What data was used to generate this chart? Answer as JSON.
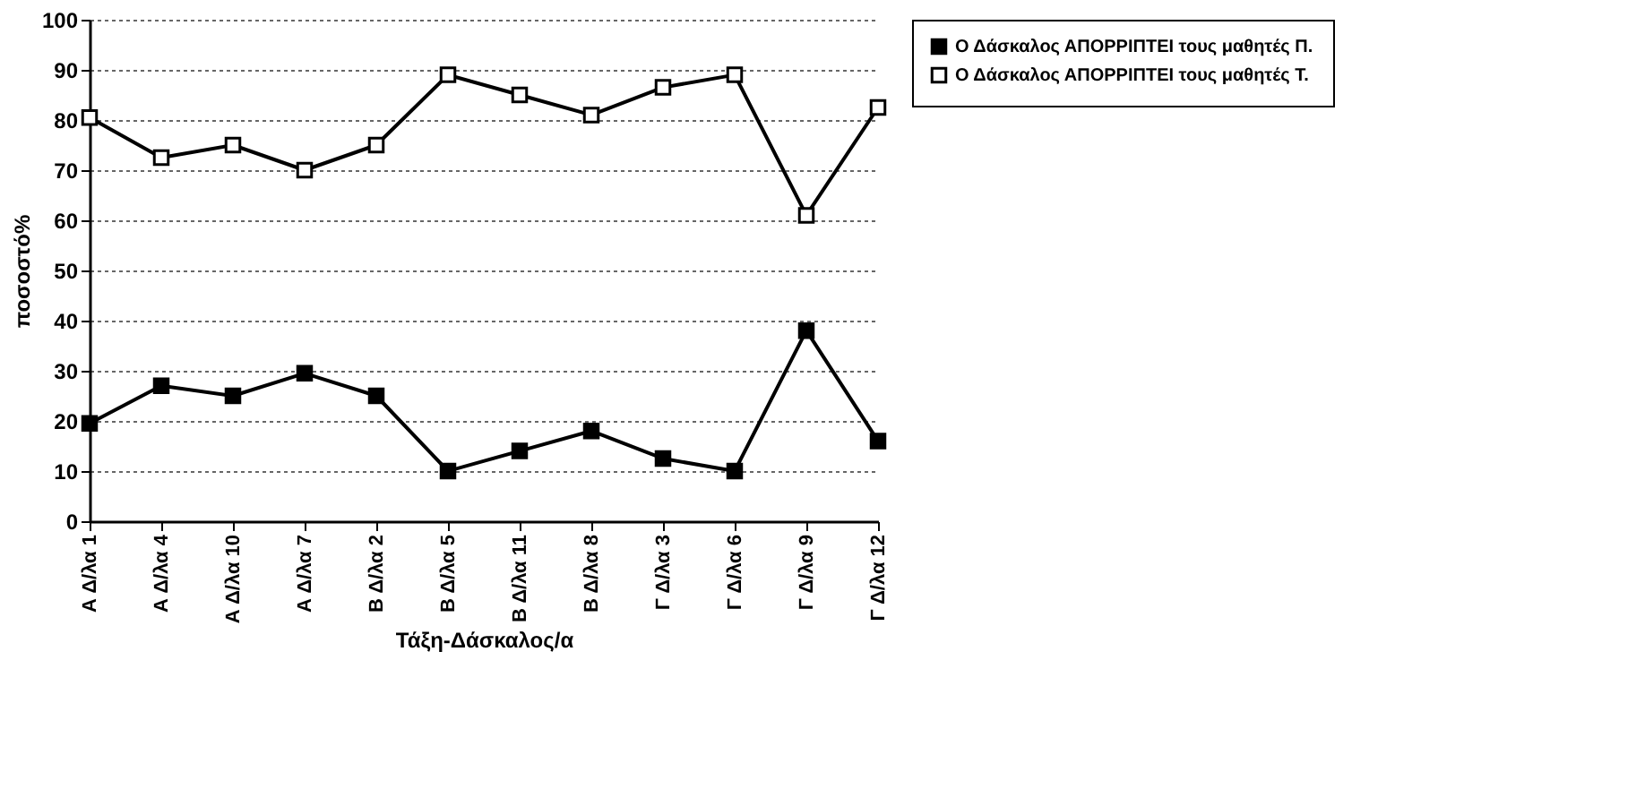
{
  "chart_data": {
    "type": "line",
    "xlabel": "Τάξη-Δάσκαλος/α",
    "ylabel": "ποσοστό%",
    "categories": [
      "Α Δ/λα 1",
      "Α Δ/λα 4",
      "Α Δ/λα 10",
      "Α Δ/λα 7",
      "Β Δ/λα 2",
      "Β Δ/λα 5",
      "Β Δ/λα 11",
      "Β Δ/λα 8",
      "Γ Δ/λα 3",
      "Γ Δ/λα 6",
      "Γ Δ/λα 9",
      "Γ Δ/λα 12"
    ],
    "series": [
      {
        "name": "Ο Δάσκαλος ΑΠΟΡΡΙΠΤΕΙ τους μαθητές Π.",
        "color": "#000000",
        "values": [
          19.5,
          27,
          25,
          29.5,
          25,
          10,
          14,
          18,
          12.5,
          10,
          38,
          16
        ]
      },
      {
        "name": "Ο Δάσκαλος ΑΠΟΡΡΙΠΤΕΙ τους μαθητές Τ.",
        "color": "#000000",
        "values": [
          80.5,
          72.5,
          75,
          70,
          75,
          89,
          85,
          81,
          86.5,
          89,
          61,
          82.5
        ]
      }
    ],
    "ylim": [
      0,
      100
    ],
    "yticks": [
      0,
      10,
      20,
      30,
      40,
      50,
      60,
      70,
      80,
      90,
      100
    ],
    "grid": "y",
    "legend": "right",
    "marker": "square",
    "line_style": "solid"
  }
}
